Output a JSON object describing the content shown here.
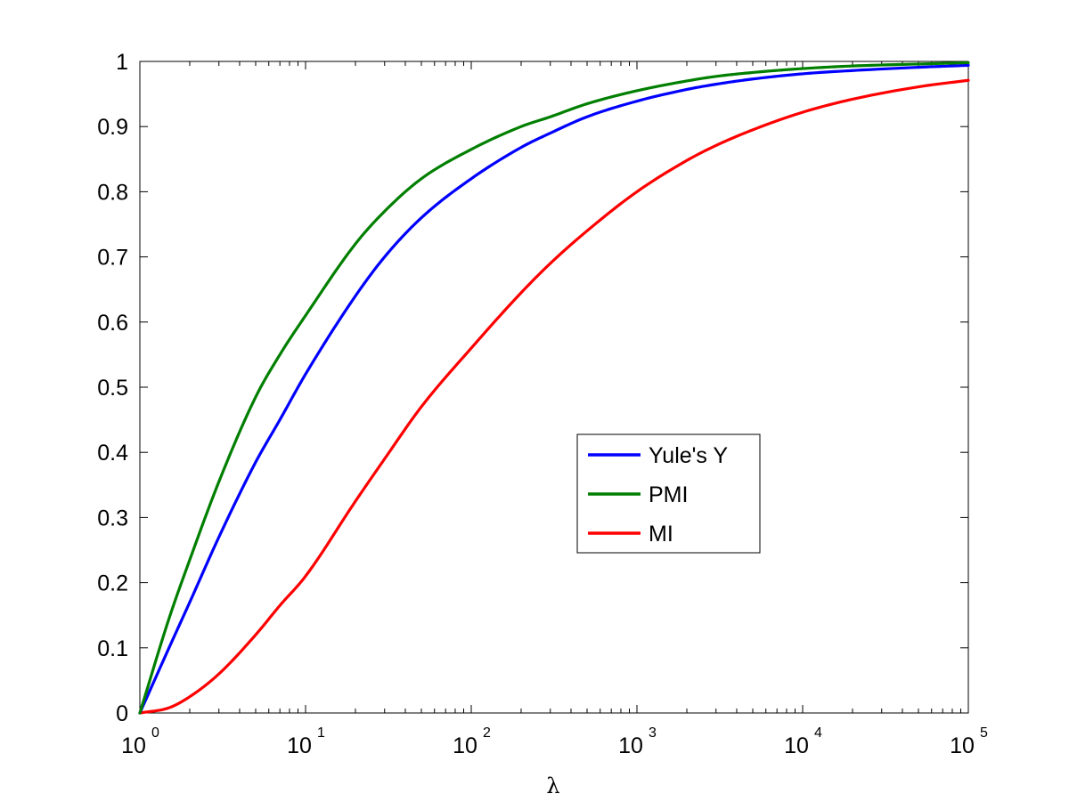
{
  "chart_data": {
    "type": "line",
    "xscale": "log",
    "xlim": [
      1,
      100000
    ],
    "ylim": [
      0,
      1
    ],
    "xlabel": "λ",
    "ylabel": "",
    "title": "",
    "grid": false,
    "legend_position": "center-right",
    "x_ticks": [
      {
        "base": "10",
        "exp": "0",
        "value": 1
      },
      {
        "base": "10",
        "exp": "1",
        "value": 10
      },
      {
        "base": "10",
        "exp": "2",
        "value": 100
      },
      {
        "base": "10",
        "exp": "3",
        "value": 1000
      },
      {
        "base": "10",
        "exp": "4",
        "value": 10000
      },
      {
        "base": "10",
        "exp": "5",
        "value": 100000
      }
    ],
    "y_ticks": [
      "0",
      "0.1",
      "0.2",
      "0.3",
      "0.4",
      "0.5",
      "0.6",
      "0.7",
      "0.8",
      "0.9",
      "1"
    ],
    "x": [
      1,
      1.5,
      2,
      3,
      5,
      7,
      10,
      20,
      30,
      50,
      100,
      200,
      300,
      500,
      1000,
      2000,
      3000,
      5000,
      10000,
      20000,
      50000,
      100000
    ],
    "series": [
      {
        "name": "Yule's Y",
        "color": "#0000ff",
        "values": [
          0,
          0.1,
          0.17,
          0.27,
          0.385,
          0.45,
          0.52,
          0.64,
          0.7,
          0.76,
          0.82,
          0.868,
          0.89,
          0.915,
          0.939,
          0.957,
          0.965,
          0.973,
          0.981,
          0.986,
          0.991,
          0.994
        ]
      },
      {
        "name": "PMI",
        "color": "#007f00",
        "values": [
          0,
          0.145,
          0.235,
          0.355,
          0.485,
          0.55,
          0.61,
          0.72,
          0.77,
          0.82,
          0.865,
          0.9,
          0.915,
          0.935,
          0.955,
          0.97,
          0.977,
          0.983,
          0.989,
          0.993,
          0.996,
          0.998
        ]
      },
      {
        "name": "MI",
        "color": "#ff0000",
        "values": [
          0,
          0.008,
          0.025,
          0.06,
          0.12,
          0.165,
          0.21,
          0.325,
          0.39,
          0.47,
          0.56,
          0.645,
          0.69,
          0.74,
          0.8,
          0.848,
          0.871,
          0.895,
          0.922,
          0.942,
          0.961,
          0.971
        ]
      }
    ]
  }
}
